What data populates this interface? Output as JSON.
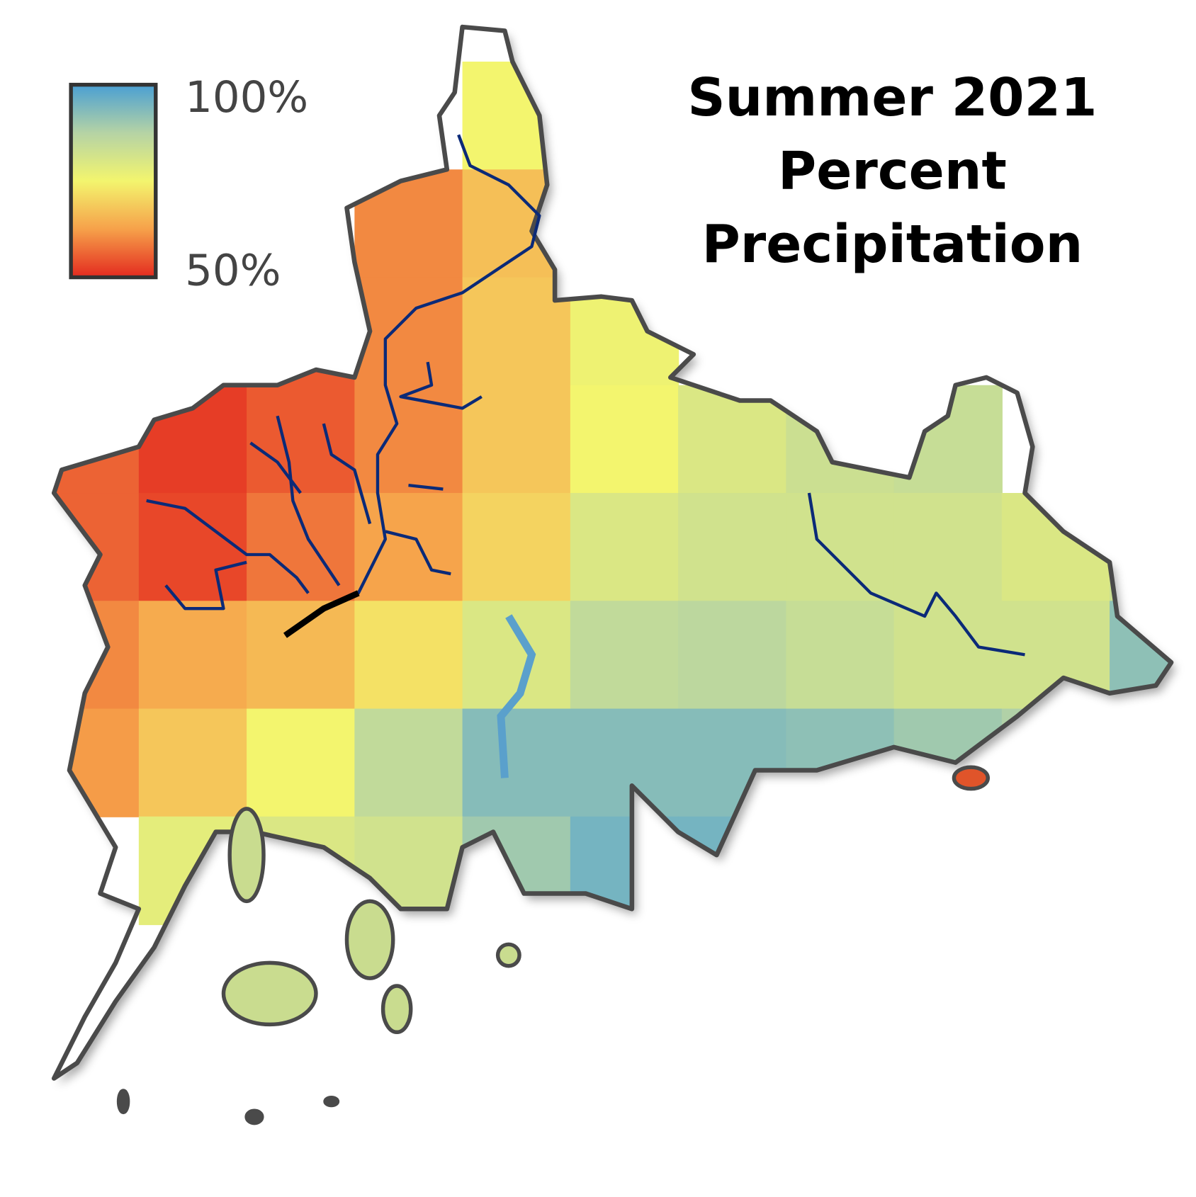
{
  "map": {
    "title": [
      "Summer 2021",
      "Percent",
      "Precipitation"
    ],
    "legend": {
      "min": {
        "value": 50,
        "label": "50%"
      },
      "max": {
        "value": 100,
        "label": "100%"
      },
      "colorscale": [
        "#e32a1f",
        "#f6a14a",
        "#f3f56e",
        "#b5d3a5",
        "#4a9fd3"
      ]
    },
    "grid": {
      "values": [
        [
          null,
          null,
          null,
          null,
          75,
          null,
          null,
          null,
          null,
          null,
          null
        ],
        [
          null,
          null,
          null,
          60,
          67,
          null,
          null,
          null,
          null,
          null,
          null
        ],
        [
          null,
          null,
          55,
          60,
          68,
          76,
          null,
          null,
          null,
          null,
          null
        ],
        [
          56,
          52,
          55,
          60,
          68,
          75,
          80,
          83,
          84,
          null,
          null
        ],
        [
          56,
          53,
          58,
          63,
          70,
          80,
          82,
          82,
          82,
          80,
          83
        ],
        [
          60,
          64,
          66,
          72,
          80,
          85,
          86,
          84,
          82,
          82,
          92
        ],
        [
          62,
          68,
          75,
          85,
          93,
          93,
          93,
          92,
          90,
          88,
          null
        ],
        [
          null,
          78,
          80,
          82,
          90,
          95,
          95,
          null,
          null,
          null,
          null
        ]
      ]
    }
  }
}
